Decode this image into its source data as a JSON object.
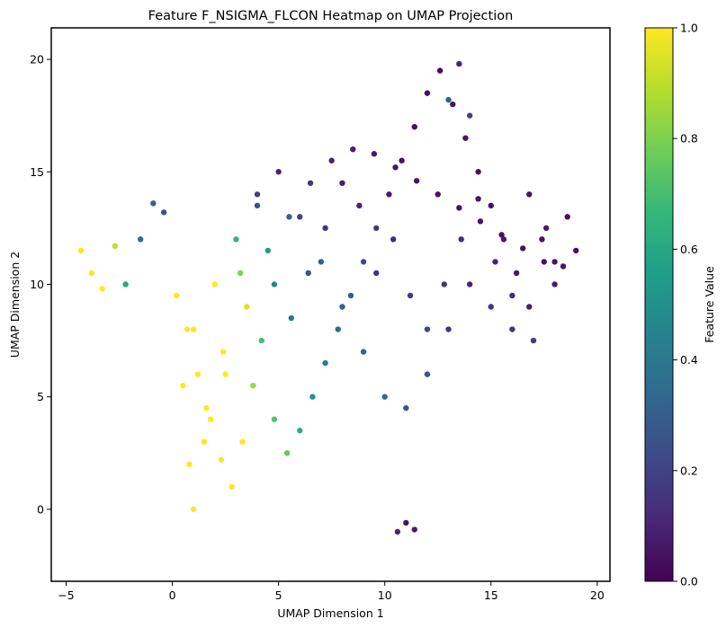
{
  "chart_data": {
    "type": "scatter",
    "title": "Feature F_NSIGMA_FLCON Heatmap on UMAP Projection",
    "xlabel": "UMAP Dimension 1",
    "ylabel": "UMAP Dimension 2",
    "xlim": [
      -5.7,
      20.6
    ],
    "ylim": [
      -3.2,
      21.4
    ],
    "xticks": [
      -5,
      0,
      5,
      10,
      15,
      20
    ],
    "yticks": [
      0,
      5,
      10,
      15,
      20
    ],
    "grid": false,
    "colorbar": {
      "label": "Feature Value",
      "range": [
        0.0,
        1.0
      ],
      "ticks": [
        0.0,
        0.2,
        0.4,
        0.6,
        0.8,
        1.0
      ],
      "tick_labels": [
        "0.0",
        "0.2",
        "0.4",
        "0.6",
        "0.8",
        "1.0"
      ],
      "colormap": "viridis",
      "colors": [
        "#440154",
        "#482878",
        "#3e4989",
        "#31688e",
        "#26828e",
        "#1f9e89",
        "#35b779",
        "#6ece58",
        "#b5de2b",
        "#fde725"
      ]
    },
    "series": [
      {
        "x": [
          -4.3,
          -3.8,
          -3.3,
          -2.7,
          -2.2,
          -1.5,
          -0.9,
          -0.4,
          0.2,
          0.7,
          1.2,
          1.8,
          2.3,
          2.8,
          3.3,
          3.8,
          4.2,
          4.8,
          5.4,
          6.0,
          6.6,
          7.2,
          7.8,
          8.4,
          9.0,
          9.6,
          10.2,
          10.8,
          11.4,
          12.0,
          12.6,
          13.2,
          13.8,
          14.4,
          15.0,
          15.6,
          16.2,
          16.8,
          17.4,
          18.0,
          18.6,
          19.0,
          10.6,
          11.0,
          11.4,
          13.0,
          13.5,
          14.0,
          1.0,
          1.5,
          2.5,
          3.5,
          4.5,
          5.5,
          6.5,
          7.5,
          8.5,
          9.5,
          10.5,
          11.5,
          12.5,
          13.5,
          14.5,
          15.5,
          16.5,
          17.5,
          0.5,
          1.0,
          2.0,
          3.0,
          4.0,
          5.0,
          6.0,
          7.0,
          8.0,
          9.0,
          10.0,
          11.0,
          12.0,
          13.0,
          14.0,
          15.0,
          16.0,
          17.0,
          18.0,
          0.8,
          1.6,
          2.4,
          3.2,
          4.0,
          4.8,
          5.6,
          6.4,
          7.2,
          8.0,
          8.8,
          9.6,
          10.4,
          11.2,
          12.0,
          12.8,
          13.6,
          14.4,
          15.2,
          16.0,
          16.8,
          17.6,
          18.4
        ],
        "y": [
          11.5,
          10.5,
          9.8,
          11.7,
          10.0,
          12.0,
          13.6,
          13.2,
          9.5,
          8.0,
          6.0,
          4.0,
          2.2,
          1.0,
          3.0,
          5.5,
          7.5,
          4.0,
          2.5,
          3.5,
          5.0,
          6.5,
          8.0,
          9.5,
          11.0,
          12.5,
          14.0,
          15.5,
          17.0,
          18.5,
          19.5,
          18.0,
          16.5,
          15.0,
          13.5,
          12.0,
          10.5,
          9.0,
          12.0,
          11.0,
          13.0,
          11.5,
          -1.0,
          -0.6,
          -0.9,
          18.2,
          19.8,
          17.5,
          0.0,
          3.0,
          6.0,
          9.0,
          11.5,
          13.0,
          14.5,
          15.5,
          16.0,
          15.8,
          15.2,
          14.6,
          14.0,
          13.4,
          12.8,
          12.2,
          11.6,
          11.0,
          5.5,
          8.0,
          10.0,
          12.0,
          14.0,
          15.0,
          13.0,
          11.0,
          9.0,
          7.0,
          5.0,
          4.5,
          6.0,
          8.0,
          10.0,
          9.0,
          8.0,
          7.5,
          10.0,
          2.0,
          4.5,
          7.0,
          10.5,
          13.5,
          10.0,
          8.5,
          10.5,
          12.5,
          14.5,
          13.5,
          10.5,
          12.0,
          9.5,
          8.0,
          10.0,
          12.0,
          13.8,
          11.0,
          9.5,
          14.0,
          12.5,
          10.8
        ],
        "c": [
          1.0,
          1.0,
          1.0,
          0.9,
          0.6,
          0.35,
          0.3,
          0.25,
          1.0,
          1.0,
          1.0,
          1.0,
          1.0,
          1.0,
          1.0,
          0.85,
          0.7,
          0.72,
          0.75,
          0.62,
          0.52,
          0.42,
          0.36,
          0.3,
          0.22,
          0.16,
          0.08,
          0.05,
          0.05,
          0.04,
          0.03,
          0.05,
          0.06,
          0.05,
          0.05,
          0.06,
          0.07,
          0.08,
          0.05,
          0.05,
          0.04,
          0.05,
          0.1,
          0.05,
          0.08,
          0.3,
          0.1,
          0.2,
          1.0,
          1.0,
          1.0,
          0.95,
          0.55,
          0.3,
          0.15,
          0.1,
          0.08,
          0.07,
          0.06,
          0.05,
          0.05,
          0.05,
          0.05,
          0.05,
          0.05,
          0.05,
          1.0,
          1.0,
          1.0,
          0.65,
          0.2,
          0.1,
          0.2,
          0.3,
          0.3,
          0.32,
          0.35,
          0.28,
          0.25,
          0.15,
          0.1,
          0.15,
          0.15,
          0.18,
          0.08,
          1.0,
          1.0,
          1.0,
          0.8,
          0.25,
          0.45,
          0.4,
          0.25,
          0.15,
          0.08,
          0.1,
          0.15,
          0.12,
          0.18,
          0.22,
          0.15,
          0.12,
          0.06,
          0.1,
          0.12,
          0.05,
          0.07,
          0.06
        ]
      }
    ]
  }
}
